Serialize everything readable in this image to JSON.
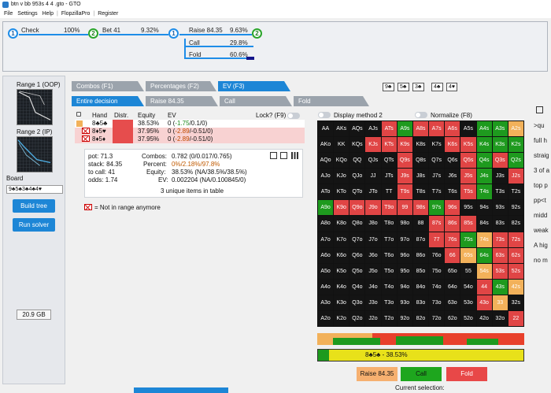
{
  "window": {
    "title": "btn v bb 953s 4 4 .gto - GTO"
  },
  "menu": [
    "File",
    "Settings",
    "Help",
    "|",
    "FlopzillaPro",
    "|",
    "Register"
  ],
  "tree": {
    "nodes": [
      "1",
      "2",
      "1",
      "2"
    ],
    "edges": [
      {
        "label": "Check",
        "pct": "100%"
      },
      {
        "label": "Bet 41",
        "pct": "9.32%"
      },
      {
        "label": "Raise 84.35",
        "pct": "9.63%"
      },
      {
        "label": "Call",
        "pct": "29.8%"
      },
      {
        "label": "Fold",
        "pct": "60.6%"
      }
    ]
  },
  "left": {
    "range1": "Range 1 (OOP)",
    "range2": "Range 2 (IP)",
    "board_label": "Board",
    "board_value": "9♣5♣3♣4♣4♥",
    "build_tree": "Build tree",
    "run_solver": "Run solver",
    "memory": "20.9 GB"
  },
  "tabs": {
    "top": [
      "Combos (F1)",
      "Percentages (F2)",
      "EV (F3)"
    ],
    "sub": [
      "Entire decision",
      "Raise 84.35",
      "Call",
      "Fold"
    ]
  },
  "board_cards": [
    "9♣",
    "5♣",
    "3♣",
    "4♣",
    "4♥"
  ],
  "hand_table": {
    "headers": {
      "hand": "Hand",
      "distr": "Distr.",
      "equity": "Equity",
      "ev": "EV",
      "lock": "Lock? (F9)"
    },
    "rows": [
      {
        "hand": "8♣5♣",
        "equity": "38.53%",
        "ev_a": "0 (",
        "ev_b": "-1.75",
        "ev_c": "/0.1/0)"
      },
      {
        "hand": "8♦5♥",
        "equity": "37.95%",
        "ev_a": "0 (",
        "ev_b": "-2.89",
        "ev_c": "/-0.51/0)"
      },
      {
        "hand": "8♦5♦",
        "equity": "37.95%",
        "ev_a": "0 (",
        "ev_b": "-2.89",
        "ev_c": "/-0.51/0)"
      }
    ]
  },
  "stats": {
    "pot": "pot: 71.3",
    "stack": "stack: 84.35",
    "tocall": "to call: 41",
    "odds": "odds: 1.74",
    "combos_k": "Combos:",
    "combos_v": "0.782 (0/0.017/0.765)",
    "percent_k": "Percent:",
    "percent_v": "0%/2.18%/97.8%",
    "equity_k": "Equity:",
    "equity_v": "38.53% (NA/38.5%/38.5%)",
    "ev_k": "EV:",
    "ev_v": "0.002204 (NA/0.100845/0)",
    "unique": "3 unique items in table"
  },
  "legend_note": "= Not in range anymore",
  "options": {
    "display_method": "Display method 2",
    "normalize": "Normalize (F8)"
  },
  "grid": {
    "cells": [
      "AA",
      "AKs",
      "AQs",
      "AJs",
      "ATs",
      "A9s",
      "A8s",
      "A7s",
      "A6s",
      "A5s",
      "A4s",
      "A3s",
      "A2s",
      "AKo",
      "KK",
      "KQs",
      "KJs",
      "KTs",
      "K9s",
      "K8s",
      "K7s",
      "K6s",
      "K5s",
      "K4s",
      "K3s",
      "K2s",
      "AQo",
      "KQo",
      "QQ",
      "QJs",
      "QTs",
      "Q9s",
      "Q8s",
      "Q7s",
      "Q6s",
      "Q5s",
      "Q4s",
      "Q3s",
      "Q2s",
      "AJo",
      "KJo",
      "QJo",
      "JJ",
      "JTs",
      "J9s",
      "J8s",
      "J7s",
      "J6s",
      "J5s",
      "J4s",
      "J3s",
      "J2s",
      "ATo",
      "KTo",
      "QTo",
      "JTo",
      "TT",
      "T9s",
      "T8s",
      "T7s",
      "T6s",
      "T5s",
      "T4s",
      "T3s",
      "T2s",
      "A9o",
      "K9o",
      "Q9o",
      "J9o",
      "T9o",
      "99",
      "98s",
      "97s",
      "96s",
      "95s",
      "94s",
      "93s",
      "92s",
      "A8o",
      "K8o",
      "Q8o",
      "J8o",
      "T8o",
      "98o",
      "88",
      "87s",
      "86s",
      "85s",
      "84s",
      "83s",
      "82s",
      "A7o",
      "K7o",
      "Q7o",
      "J7o",
      "T7o",
      "97o",
      "87o",
      "77",
      "76s",
      "75s",
      "74s",
      "73s",
      "72s",
      "A6o",
      "K6o",
      "Q6o",
      "J6o",
      "T6o",
      "96o",
      "86o",
      "76o",
      "66",
      "65s",
      "64s",
      "63s",
      "62s",
      "A5o",
      "K5o",
      "Q5o",
      "J5o",
      "T5o",
      "95o",
      "85o",
      "75o",
      "65o",
      "55",
      "54s",
      "53s",
      "52s",
      "A4o",
      "K4o",
      "Q4o",
      "J4o",
      "T4o",
      "94o",
      "84o",
      "74o",
      "64o",
      "54o",
      "44",
      "43s",
      "42s",
      "A3o",
      "K3o",
      "Q3o",
      "J3o",
      "T3o",
      "93o",
      "83o",
      "73o",
      "63o",
      "53o",
      "43o",
      "33",
      "32s",
      "A2o",
      "K2o",
      "Q2o",
      "J2o",
      "T2o",
      "92o",
      "82o",
      "72o",
      "62o",
      "52o",
      "42o",
      "32o",
      "22"
    ],
    "colors": {
      "ATs": "#e04545",
      "A9s": "#1e9a1e",
      "A8s": "#e04545",
      "A7s": "#e04545",
      "A6s": "#e04545",
      "A4s": "#1e9a1e",
      "A3s": "#1e9a1e",
      "A2s": "#f2b15a",
      "KJs": "#e04545",
      "KTs": "#e04545",
      "K9s": "#e04545",
      "K6s": "#e04545",
      "K5s": "#e04545",
      "K4s": "#1e9a1e",
      "K3s": "#1e9a1e",
      "K2s": "#1e9a1e",
      "Q9s": "#e04545",
      "Q5s": "#e04545",
      "Q4s": "#1e9a1e",
      "Q3s": "#e04545",
      "Q2s": "#1e9a1e",
      "J9s": "#e04545",
      "J5s": "#e04545",
      "J4s": "#1e9a1e",
      "J2s": "#e04545",
      "T9s": "#e04545",
      "T5s": "#e04545",
      "T4s": "#1e9a1e",
      "A9o": "#1e9a1e",
      "K9o": "#e04545",
      "Q9o": "#e04545",
      "J9o": "#e04545",
      "T9o": "#e04545",
      "99": "#e04545",
      "98s": "#e04545",
      "97s": "#1e9a1e",
      "96s": "#e04545",
      "87s": "#e04545",
      "86s": "#e04545",
      "85s": "#e04545",
      "77": "#e04545",
      "76s": "#e04545",
      "75s": "#1e9a1e",
      "74s": "#f2b15a",
      "73s": "#e04545",
      "72s": "#e04545",
      "66": "#e04545",
      "65s": "#f2b15a",
      "64s": "#1e9a1e",
      "63s": "#e04545",
      "62s": "#e04545",
      "54s": "#f2b15a",
      "53s": "#e04545",
      "52s": "#e04545",
      "44": "#e04545",
      "43s": "#1e9a1e",
      "42s": "#f2b15a",
      "43o": "#e04545",
      "33": "#f2b15a",
      "22": "#e04545"
    }
  },
  "selection_bar": "8♣5♣ - 38.53%",
  "actions": {
    "raise": "Raise 84.35",
    "call": "Call",
    "fold": "Fold"
  },
  "current_selection": "Current selection:",
  "right_notes": [
    ">qu",
    "full h",
    "straig",
    "3 of a",
    "top p",
    "pp<t",
    "midd",
    "weak",
    "A hig",
    "no m"
  ]
}
